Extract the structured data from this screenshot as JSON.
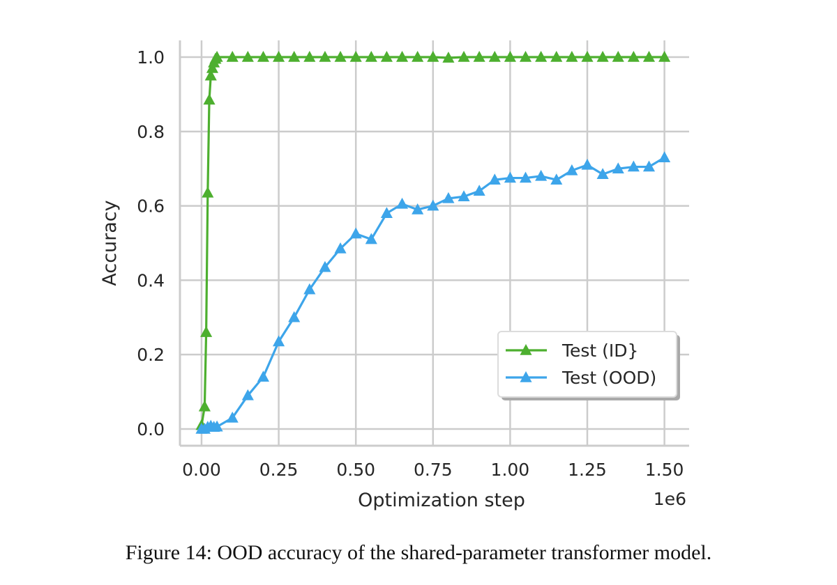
{
  "chart_data": {
    "type": "line",
    "title": "",
    "xlabel": "Optimization step",
    "ylabel": "Accuracy",
    "x_offset_label": "1e6",
    "xlim": [
      -0.07,
      1.58
    ],
    "ylim": [
      -0.045,
      1.045
    ],
    "x_ticks": [
      0.0,
      0.25,
      0.5,
      0.75,
      1.0,
      1.25,
      1.5
    ],
    "x_tick_labels": [
      "0.00",
      "0.25",
      "0.50",
      "0.75",
      "1.00",
      "1.25",
      "1.50"
    ],
    "y_ticks": [
      0.0,
      0.2,
      0.4,
      0.6,
      0.8,
      1.0
    ],
    "y_tick_labels": [
      "0.0",
      "0.2",
      "0.4",
      "0.6",
      "0.8",
      "1.0"
    ],
    "grid": true,
    "legend_position": "lower-right",
    "marker": "triangle-up",
    "series": [
      {
        "name": "Test (ID}",
        "color": "#4daf2f",
        "x": [
          0.0,
          0.01,
          0.015,
          0.02,
          0.025,
          0.03,
          0.035,
          0.04,
          0.045,
          0.05,
          0.1,
          0.15,
          0.2,
          0.25,
          0.3,
          0.35,
          0.4,
          0.45,
          0.5,
          0.55,
          0.6,
          0.65,
          0.7,
          0.75,
          0.8,
          0.85,
          0.9,
          0.95,
          1.0,
          1.05,
          1.1,
          1.15,
          1.2,
          1.25,
          1.3,
          1.35,
          1.4,
          1.45,
          1.5
        ],
        "y": [
          0.01,
          0.06,
          0.26,
          0.635,
          0.885,
          0.95,
          0.97,
          0.985,
          0.995,
          1.0,
          1.0,
          1.0,
          1.0,
          1.0,
          1.0,
          1.0,
          1.0,
          1.0,
          1.0,
          1.0,
          1.0,
          1.0,
          1.0,
          1.0,
          0.998,
          1.0,
          1.0,
          1.0,
          1.0,
          1.0,
          1.0,
          1.0,
          1.0,
          1.0,
          1.0,
          1.0,
          1.0,
          1.0,
          1.0
        ]
      },
      {
        "name": "Test (OOD)",
        "color": "#3da5ea",
        "x": [
          0.0,
          0.01,
          0.02,
          0.03,
          0.04,
          0.05,
          0.1,
          0.15,
          0.2,
          0.25,
          0.3,
          0.35,
          0.4,
          0.45,
          0.5,
          0.55,
          0.6,
          0.65,
          0.7,
          0.75,
          0.8,
          0.85,
          0.9,
          0.95,
          1.0,
          1.05,
          1.1,
          1.15,
          1.2,
          1.25,
          1.3,
          1.35,
          1.4,
          1.45,
          1.5
        ],
        "y": [
          0.0,
          0.0,
          0.005,
          0.008,
          0.005,
          0.006,
          0.03,
          0.09,
          0.14,
          0.235,
          0.3,
          0.375,
          0.435,
          0.485,
          0.525,
          0.51,
          0.58,
          0.605,
          0.59,
          0.6,
          0.62,
          0.625,
          0.64,
          0.67,
          0.675,
          0.675,
          0.68,
          0.67,
          0.695,
          0.71,
          0.685,
          0.7,
          0.705,
          0.705,
          0.73
        ]
      }
    ]
  },
  "caption": "Figure 14: OOD accuracy of the shared-parameter transformer model."
}
